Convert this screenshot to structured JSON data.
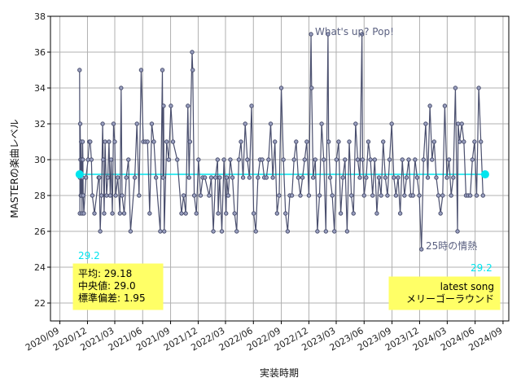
{
  "chart_data": {
    "type": "line",
    "xlabel": "実装時期",
    "ylabel": "MASTERの楽曲レベル",
    "xlim": [
      "2020-08-01",
      "2024-09-20"
    ],
    "ylim": [
      21,
      38
    ],
    "yticks": [
      22,
      24,
      26,
      28,
      30,
      32,
      34,
      36,
      38
    ],
    "xticks": [
      "2020/09",
      "2020/12",
      "2021/03",
      "2021/06",
      "2021/09",
      "2021/12",
      "2022/03",
      "2022/06",
      "2022/09",
      "2022/12",
      "2023/03",
      "2023/06",
      "2023/09",
      "2023/12",
      "2024/03",
      "2024/06",
      "2024/09"
    ],
    "grid": true,
    "line_color": "#4a4f6e",
    "mean_line_color": "#00e5ee",
    "series": [
      {
        "values": [
          [
            "2020-11-05",
            35
          ],
          [
            "2020-11-06",
            29
          ],
          [
            "2020-11-06",
            27
          ],
          [
            "2020-11-07",
            32
          ],
          [
            "2020-11-08",
            30
          ],
          [
            "2020-11-09",
            28
          ],
          [
            "2020-11-10",
            31
          ],
          [
            "2020-11-11",
            28
          ],
          [
            "2020-11-12",
            30
          ],
          [
            "2020-11-13",
            27
          ],
          [
            "2020-11-14",
            29
          ],
          [
            "2020-11-15",
            31
          ],
          [
            "2020-11-16",
            30
          ],
          [
            "2020-11-17",
            28
          ],
          [
            "2020-11-19",
            27
          ],
          [
            "2020-11-26",
            29
          ],
          [
            "2020-12-03",
            30
          ],
          [
            "2020-12-07",
            31
          ],
          [
            "2020-12-10",
            31
          ],
          [
            "2020-12-14",
            30
          ],
          [
            "2020-12-17",
            28
          ],
          [
            "2020-12-24",
            27
          ],
          [
            "2021-01-07",
            29
          ],
          [
            "2021-01-09",
            29
          ],
          [
            "2021-01-12",
            26
          ],
          [
            "2021-01-16",
            28
          ],
          [
            "2021-01-20",
            32
          ],
          [
            "2021-01-22",
            30
          ],
          [
            "2021-01-25",
            27
          ],
          [
            "2021-01-28",
            31
          ],
          [
            "2021-02-02",
            28
          ],
          [
            "2021-02-06",
            29
          ],
          [
            "2021-02-10",
            31
          ],
          [
            "2021-02-14",
            28
          ],
          [
            "2021-02-17",
            30
          ],
          [
            "2021-02-21",
            27
          ],
          [
            "2021-02-25",
            32
          ],
          [
            "2021-03-01",
            31
          ],
          [
            "2021-03-04",
            28
          ],
          [
            "2021-03-11",
            29
          ],
          [
            "2021-03-18",
            27
          ],
          [
            "2021-03-22",
            34
          ],
          [
            "2021-03-25",
            28
          ],
          [
            "2021-04-01",
            27
          ],
          [
            "2021-04-08",
            29
          ],
          [
            "2021-04-15",
            30
          ],
          [
            "2021-04-22",
            26
          ],
          [
            "2021-05-06",
            29
          ],
          [
            "2021-05-13",
            32
          ],
          [
            "2021-05-20",
            28
          ],
          [
            "2021-05-27",
            35
          ],
          [
            "2021-06-03",
            31
          ],
          [
            "2021-06-10",
            31
          ],
          [
            "2021-06-17",
            31
          ],
          [
            "2021-06-24",
            27
          ],
          [
            "2021-07-01",
            32
          ],
          [
            "2021-07-08",
            31
          ],
          [
            "2021-07-15",
            29
          ],
          [
            "2021-07-29",
            26
          ],
          [
            "2021-08-05",
            35
          ],
          [
            "2021-08-07",
            29
          ],
          [
            "2021-08-09",
            33
          ],
          [
            "2021-08-11",
            26
          ],
          [
            "2021-08-19",
            31
          ],
          [
            "2021-08-26",
            30
          ],
          [
            "2021-09-02",
            33
          ],
          [
            "2021-09-09",
            31
          ],
          [
            "2021-09-23",
            30
          ],
          [
            "2021-10-07",
            27
          ],
          [
            "2021-10-14",
            28
          ],
          [
            "2021-10-21",
            27
          ],
          [
            "2021-10-28",
            33
          ],
          [
            "2021-11-01",
            29
          ],
          [
            "2021-11-04",
            31
          ],
          [
            "2021-11-11",
            36
          ],
          [
            "2021-11-13",
            35
          ],
          [
            "2021-11-18",
            28
          ],
          [
            "2021-11-25",
            27
          ],
          [
            "2021-12-02",
            30
          ],
          [
            "2021-12-09",
            28
          ],
          [
            "2021-12-16",
            29
          ],
          [
            "2021-12-23",
            29
          ],
          [
            "2022-01-06",
            28
          ],
          [
            "2022-01-13",
            29
          ],
          [
            "2022-01-20",
            26
          ],
          [
            "2022-01-27",
            29
          ],
          [
            "2022-02-03",
            30
          ],
          [
            "2022-02-05",
            27
          ],
          [
            "2022-02-10",
            29
          ],
          [
            "2022-02-17",
            26
          ],
          [
            "2022-02-24",
            30
          ],
          [
            "2022-03-03",
            27
          ],
          [
            "2022-03-05",
            29
          ],
          [
            "2022-03-10",
            28
          ],
          [
            "2022-03-17",
            30
          ],
          [
            "2022-03-24",
            29
          ],
          [
            "2022-03-31",
            27
          ],
          [
            "2022-04-07",
            26
          ],
          [
            "2022-04-14",
            30
          ],
          [
            "2022-04-21",
            31
          ],
          [
            "2022-04-28",
            29
          ],
          [
            "2022-05-05",
            32
          ],
          [
            "2022-05-12",
            30
          ],
          [
            "2022-05-19",
            29
          ],
          [
            "2022-05-26",
            33
          ],
          [
            "2022-06-02",
            27
          ],
          [
            "2022-06-09",
            26
          ],
          [
            "2022-06-16",
            29
          ],
          [
            "2022-06-23",
            30
          ],
          [
            "2022-06-30",
            30
          ],
          [
            "2022-07-07",
            29
          ],
          [
            "2022-07-14",
            29
          ],
          [
            "2022-07-21",
            30
          ],
          [
            "2022-07-28",
            32
          ],
          [
            "2022-08-04",
            29
          ],
          [
            "2022-08-11",
            31
          ],
          [
            "2022-08-18",
            27
          ],
          [
            "2022-08-25",
            28
          ],
          [
            "2022-09-01",
            34
          ],
          [
            "2022-09-08",
            30
          ],
          [
            "2022-09-15",
            27
          ],
          [
            "2022-09-22",
            26
          ],
          [
            "2022-09-29",
            28
          ],
          [
            "2022-10-06",
            28
          ],
          [
            "2022-10-13",
            30
          ],
          [
            "2022-10-20",
            31
          ],
          [
            "2022-10-27",
            29
          ],
          [
            "2022-11-03",
            28
          ],
          [
            "2022-11-10",
            29
          ],
          [
            "2022-11-17",
            30
          ],
          [
            "2022-11-24",
            31
          ],
          [
            "2022-12-01",
            28
          ],
          [
            "2022-12-08",
            37
          ],
          [
            "2022-12-10",
            34
          ],
          [
            "2022-12-15",
            29
          ],
          [
            "2022-12-22",
            30
          ],
          [
            "2022-12-29",
            26
          ],
          [
            "2023-01-05",
            28
          ],
          [
            "2023-01-12",
            32
          ],
          [
            "2023-01-19",
            30
          ],
          [
            "2023-01-26",
            26
          ],
          [
            "2023-02-02",
            37
          ],
          [
            "2023-02-04",
            31
          ],
          [
            "2023-02-09",
            29
          ],
          [
            "2023-02-16",
            28
          ],
          [
            "2023-02-23",
            26
          ],
          [
            "2023-03-02",
            30
          ],
          [
            "2023-03-09",
            31
          ],
          [
            "2023-03-16",
            27
          ],
          [
            "2023-03-23",
            29
          ],
          [
            "2023-03-30",
            30
          ],
          [
            "2023-04-06",
            26
          ],
          [
            "2023-04-13",
            31
          ],
          [
            "2023-04-20",
            28
          ],
          [
            "2023-04-27",
            27
          ],
          [
            "2023-05-04",
            32
          ],
          [
            "2023-05-11",
            30
          ],
          [
            "2023-05-18",
            29
          ],
          [
            "2023-05-25",
            37
          ],
          [
            "2023-05-27",
            30
          ],
          [
            "2023-06-01",
            28
          ],
          [
            "2023-06-08",
            29
          ],
          [
            "2023-06-15",
            31
          ],
          [
            "2023-06-22",
            30
          ],
          [
            "2023-06-29",
            28
          ],
          [
            "2023-07-06",
            30
          ],
          [
            "2023-07-13",
            27
          ],
          [
            "2023-07-20",
            29
          ],
          [
            "2023-07-27",
            28
          ],
          [
            "2023-08-03",
            31
          ],
          [
            "2023-08-10",
            29
          ],
          [
            "2023-08-17",
            28
          ],
          [
            "2023-08-24",
            30
          ],
          [
            "2023-08-31",
            32
          ],
          [
            "2023-09-07",
            29
          ],
          [
            "2023-09-14",
            28
          ],
          [
            "2023-09-21",
            29
          ],
          [
            "2023-09-28",
            27
          ],
          [
            "2023-10-05",
            30
          ],
          [
            "2023-10-12",
            28
          ],
          [
            "2023-10-19",
            29
          ],
          [
            "2023-10-26",
            30
          ],
          [
            "2023-11-02",
            28
          ],
          [
            "2023-11-09",
            28
          ],
          [
            "2023-11-16",
            30
          ],
          [
            "2023-11-23",
            29
          ],
          [
            "2023-11-30",
            28
          ],
          [
            "2023-12-07",
            25
          ],
          [
            "2023-12-14",
            30
          ],
          [
            "2023-12-21",
            32
          ],
          [
            "2023-12-28",
            29
          ],
          [
            "2024-01-04",
            33
          ],
          [
            "2024-01-11",
            30
          ],
          [
            "2024-01-18",
            31
          ],
          [
            "2024-01-25",
            29
          ],
          [
            "2024-02-01",
            28
          ],
          [
            "2024-02-08",
            27
          ],
          [
            "2024-02-15",
            28
          ],
          [
            "2024-02-22",
            33
          ],
          [
            "2024-02-29",
            29
          ],
          [
            "2024-03-07",
            30
          ],
          [
            "2024-03-14",
            28
          ],
          [
            "2024-03-21",
            29
          ],
          [
            "2024-03-28",
            34
          ],
          [
            "2024-04-04",
            26
          ],
          [
            "2024-04-06",
            32
          ],
          [
            "2024-04-11",
            31
          ],
          [
            "2024-04-18",
            32
          ],
          [
            "2024-04-25",
            31
          ],
          [
            "2024-05-02",
            28
          ],
          [
            "2024-05-09",
            28
          ],
          [
            "2024-05-16",
            28
          ],
          [
            "2024-05-23",
            30
          ],
          [
            "2024-05-30",
            31
          ],
          [
            "2024-06-06",
            28
          ],
          [
            "2024-06-13",
            34
          ],
          [
            "2024-06-20",
            31
          ],
          [
            "2024-06-27",
            28
          ]
        ]
      }
    ],
    "mean_line": {
      "y": 29.18,
      "start": "2020-11-05",
      "end": "2024-07-04"
    },
    "endpoint_labels": {
      "first": "29.2",
      "last": "29.2"
    },
    "stats_box": {
      "mean_label": "平均: 29.18",
      "median_label": "中央値: 29.0",
      "std_label": "標準偏差:  1.95"
    },
    "latest_box": {
      "title": "latest song",
      "song": "メリーゴーラウンド"
    },
    "annotations": [
      {
        "text": "What's up? Pop!",
        "x": "2022-12-08",
        "y": 37
      },
      {
        "text": "25時の情熱",
        "x": "2023-12-07",
        "y": 25
      }
    ]
  }
}
